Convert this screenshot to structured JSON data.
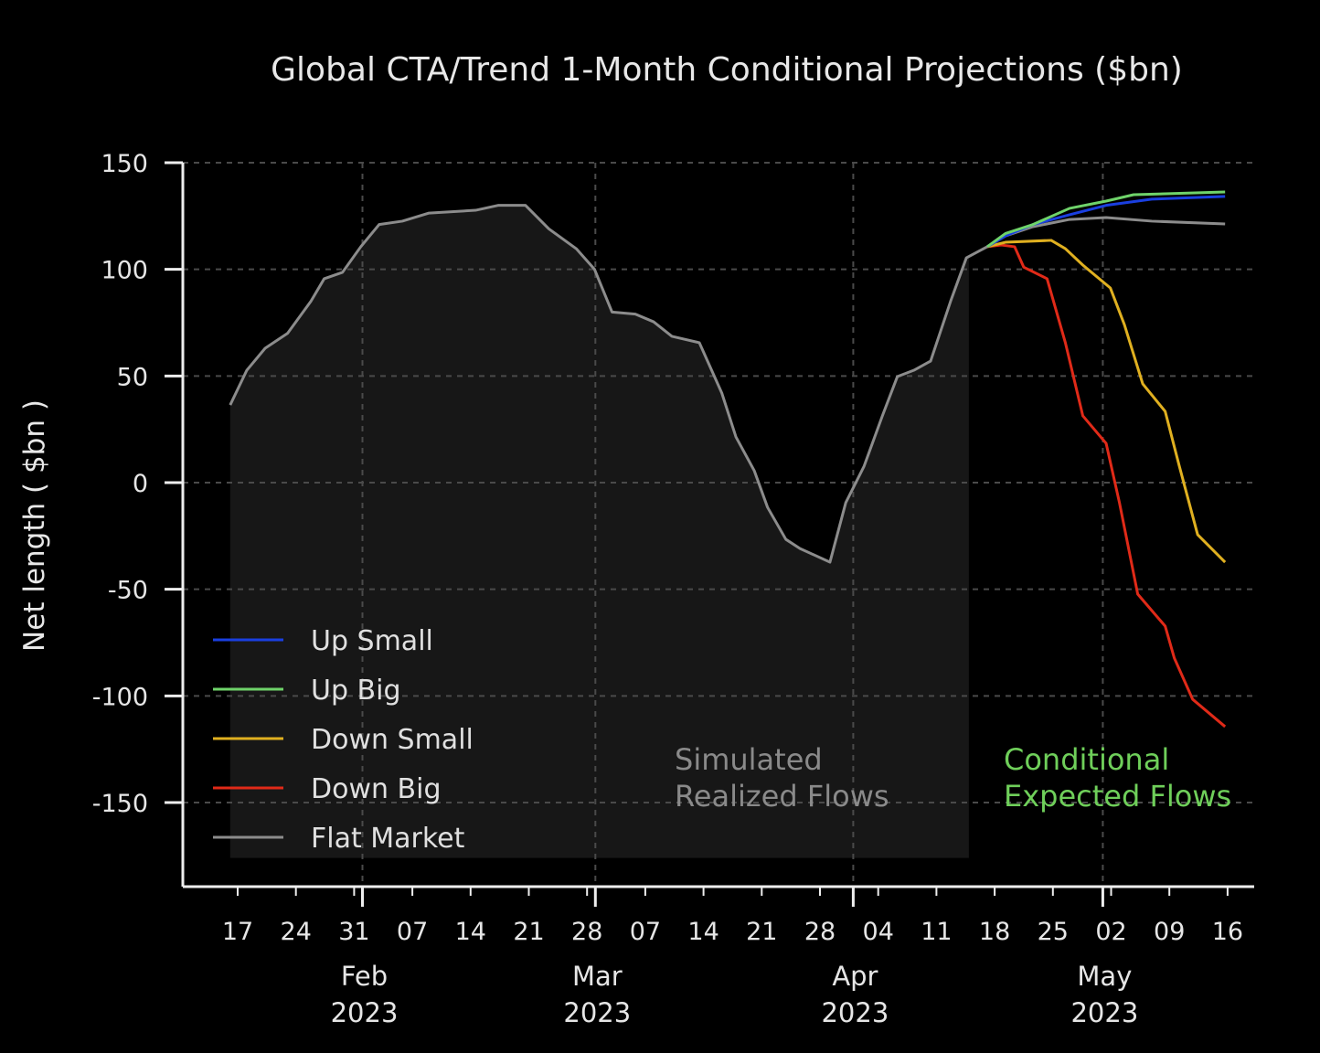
{
  "chart_data": {
    "type": "line",
    "title": "Global CTA/Trend 1-Month Conditional Projections ($bn)",
    "xlabel": "",
    "ylabel": "Net length ( $bn )",
    "x_unit": "days since 2023-01-17",
    "xlim": [
      -6.6,
      122
    ],
    "ylim": [
      -189,
      150
    ],
    "yticks": [
      150,
      100,
      50,
      0,
      -50,
      -100,
      -150
    ],
    "ytick_labels": [
      "150",
      "100",
      "50",
      "0",
      "-50",
      "-100",
      "-150"
    ],
    "xticks": [
      0,
      7,
      14,
      21,
      28,
      35,
      42,
      49,
      56,
      63,
      70,
      77,
      84,
      91,
      98,
      105,
      112,
      119
    ],
    "xtick_labels": [
      "17",
      "24",
      "31",
      "07",
      "14",
      "21",
      "28",
      "07",
      "14",
      "21",
      "28",
      "04",
      "11",
      "18",
      "25",
      "02",
      "09",
      "16"
    ],
    "month_ticks": [
      15,
      43,
      74,
      104
    ],
    "month_labels": [
      {
        "month": "Feb",
        "year": "2023",
        "x": 15
      },
      {
        "month": "Mar",
        "year": "2023",
        "x": 43
      },
      {
        "month": "Apr",
        "year": "2023",
        "x": 74
      },
      {
        "month": "May",
        "year": "2023",
        "x": 104
      }
    ],
    "grid": true,
    "legend_position": "bottom-left",
    "realized_region": {
      "x": [
        -0.9,
        87.9
      ],
      "floor": -176
    },
    "series": [
      {
        "name": "Up Small",
        "color": "#1a3fe0",
        "x": [
          90.1,
          92.3,
          95.6,
          100,
          104.4,
          109.9,
          118.7
        ],
        "y": [
          110.6,
          115.7,
          121,
          125.6,
          130,
          132.9,
          134.2
        ]
      },
      {
        "name": "Up Big",
        "color": "#6fd36a",
        "x": [
          90.1,
          92.3,
          95.6,
          100,
          104.4,
          107.7,
          118.7
        ],
        "y": [
          110.6,
          116.8,
          121,
          128.6,
          132,
          135,
          136.3
        ]
      },
      {
        "name": "Down Small",
        "color": "#e0b020",
        "x": [
          90.1,
          92.3,
          97.8,
          99.5,
          101.6,
          104.9,
          106.6,
          108.8,
          111.5,
          113.2,
          115.4,
          118.7
        ],
        "y": [
          110.6,
          112.7,
          113.6,
          109.7,
          102,
          91.3,
          74,
          46.3,
          33.4,
          7.7,
          -24.4,
          -37.3
        ]
      },
      {
        "name": "Down Big",
        "color": "#e02a18",
        "x": [
          90.1,
          91.8,
          93.4,
          94.5,
          97.3,
          99.5,
          101.6,
          104.4,
          106,
          108.2,
          111.5,
          112.6,
          114.8,
          118.7
        ],
        "y": [
          110.6,
          111.4,
          110.6,
          101,
          95.6,
          65.6,
          31.3,
          18.4,
          -9.4,
          -52.3,
          -67.3,
          -82.3,
          -101.6,
          -114.4
        ]
      },
      {
        "name": "Flat Market",
        "color": "#8c8c8c",
        "x": [
          -0.9,
          1.1,
          3.3,
          6.0,
          8.8,
          10.4,
          12.6,
          14.8,
          17,
          19.8,
          23,
          28.6,
          31.3,
          34.6,
          37.4,
          40.7,
          42.9,
          45,
          47.8,
          50,
          52.2,
          55.5,
          58.2,
          59.9,
          62.1,
          63.7,
          65.9,
          67.6,
          71.2,
          73.1,
          75.3,
          77.5,
          79.3,
          81.3,
          83.3,
          85.7,
          87.6,
          90.1,
          92.3,
          95.6,
          100,
          104.4,
          109.9,
          118.7
        ],
        "y": [
          36.4,
          52.7,
          63,
          70,
          85,
          95.6,
          98.6,
          110.6,
          121,
          122.6,
          126.4,
          127.7,
          130,
          130,
          119,
          109.7,
          100,
          80,
          79,
          75.4,
          68.6,
          65.6,
          42,
          21.4,
          5.6,
          -11.6,
          -26.6,
          -30.9,
          -37.3,
          -9.4,
          7.7,
          31.3,
          49.7,
          52.7,
          57,
          85,
          105.4,
          110.6,
          115.7,
          120,
          123.4,
          124.3,
          122.6,
          121.3
        ]
      }
    ],
    "annotations": [
      {
        "lines": [
          "Simulated",
          "Realized Flows"
        ],
        "color": "#8a8a8a"
      },
      {
        "lines": [
          "Conditional",
          "Expected Flows"
        ],
        "color": "#6fcf5a"
      }
    ]
  }
}
